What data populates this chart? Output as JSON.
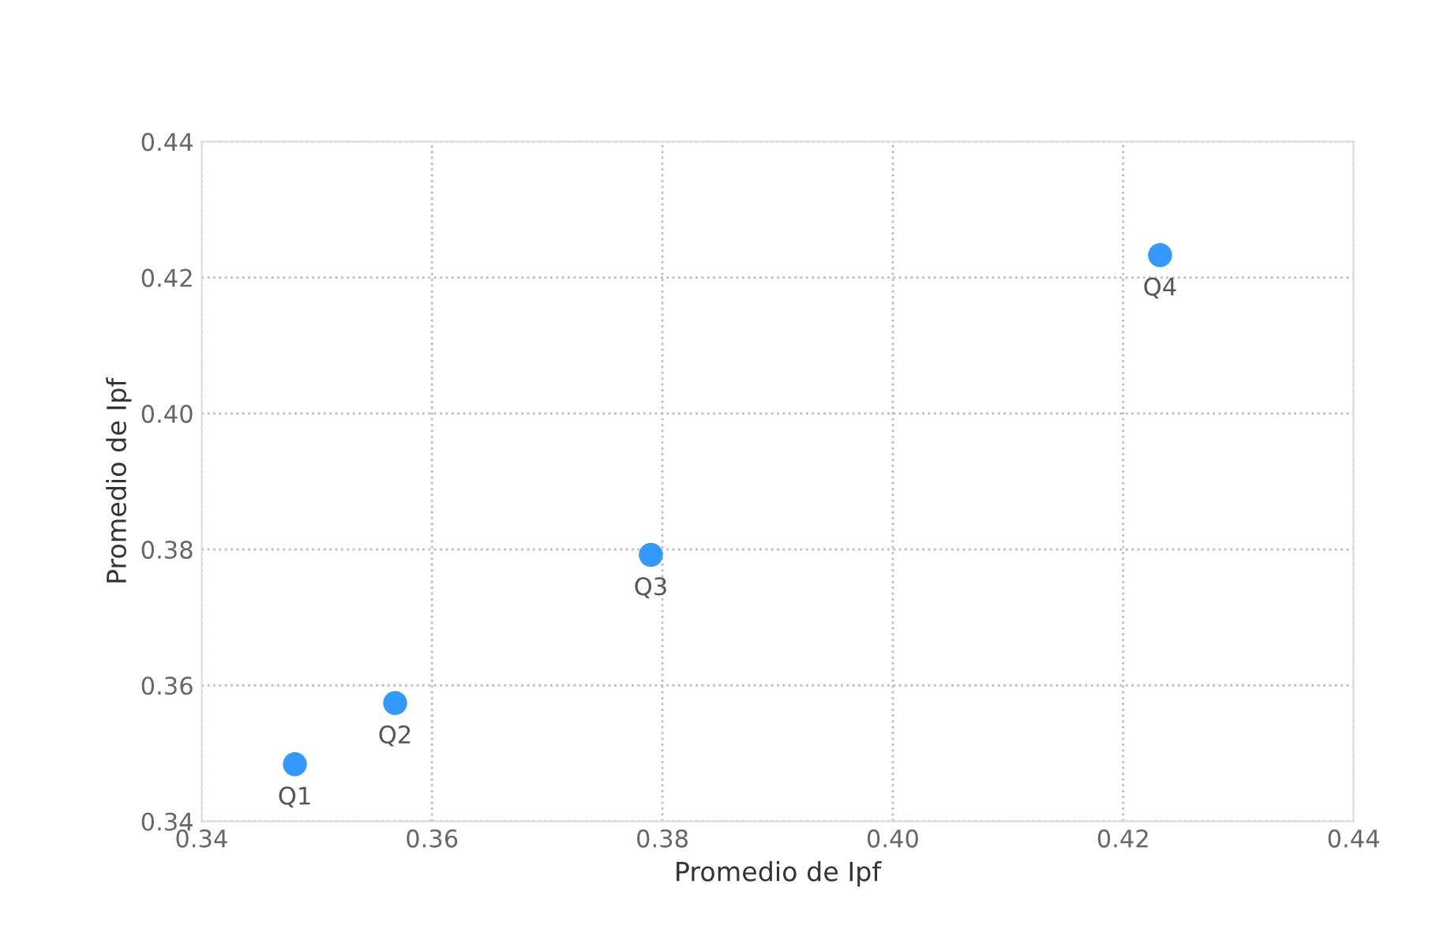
{
  "chart_data": {
    "type": "scatter",
    "xlabel": "Promedio de Ipf",
    "ylabel": "Promedio de Ipf",
    "x": [
      0.3481,
      0.3568,
      0.379,
      0.4232
    ],
    "series": [
      {
        "color": "#3399ff",
        "values": [
          0.3484,
          0.3574,
          0.3792,
          0.4233
        ]
      }
    ],
    "annotations": [
      {
        "text": "Q1",
        "x": 0.3481,
        "y": 0.3484
      },
      {
        "text": "Q2",
        "x": 0.3568,
        "y": 0.3574
      },
      {
        "text": "Q3",
        "x": 0.379,
        "y": 0.3792
      },
      {
        "text": "Q4",
        "x": 0.4232,
        "y": 0.4233
      }
    ],
    "xlim": [
      0.34,
      0.44
    ],
    "ylim": [
      0.34,
      0.44
    ],
    "xticks": [
      {
        "value": 0.34,
        "label": "0.34"
      },
      {
        "value": 0.36,
        "label": "0.36"
      },
      {
        "value": 0.38,
        "label": "0.38"
      },
      {
        "value": 0.4,
        "label": "0.40"
      },
      {
        "value": 0.42,
        "label": "0.42"
      },
      {
        "value": 0.44,
        "label": "0.44"
      }
    ],
    "yticks": [
      {
        "value": 0.34,
        "label": "0.34"
      },
      {
        "value": 0.36,
        "label": "0.36"
      },
      {
        "value": 0.38,
        "label": "0.38"
      },
      {
        "value": 0.4,
        "label": "0.40"
      },
      {
        "value": 0.42,
        "label": "0.42"
      },
      {
        "value": 0.44,
        "label": "0.44"
      }
    ],
    "grid": true,
    "marker": "circle"
  }
}
